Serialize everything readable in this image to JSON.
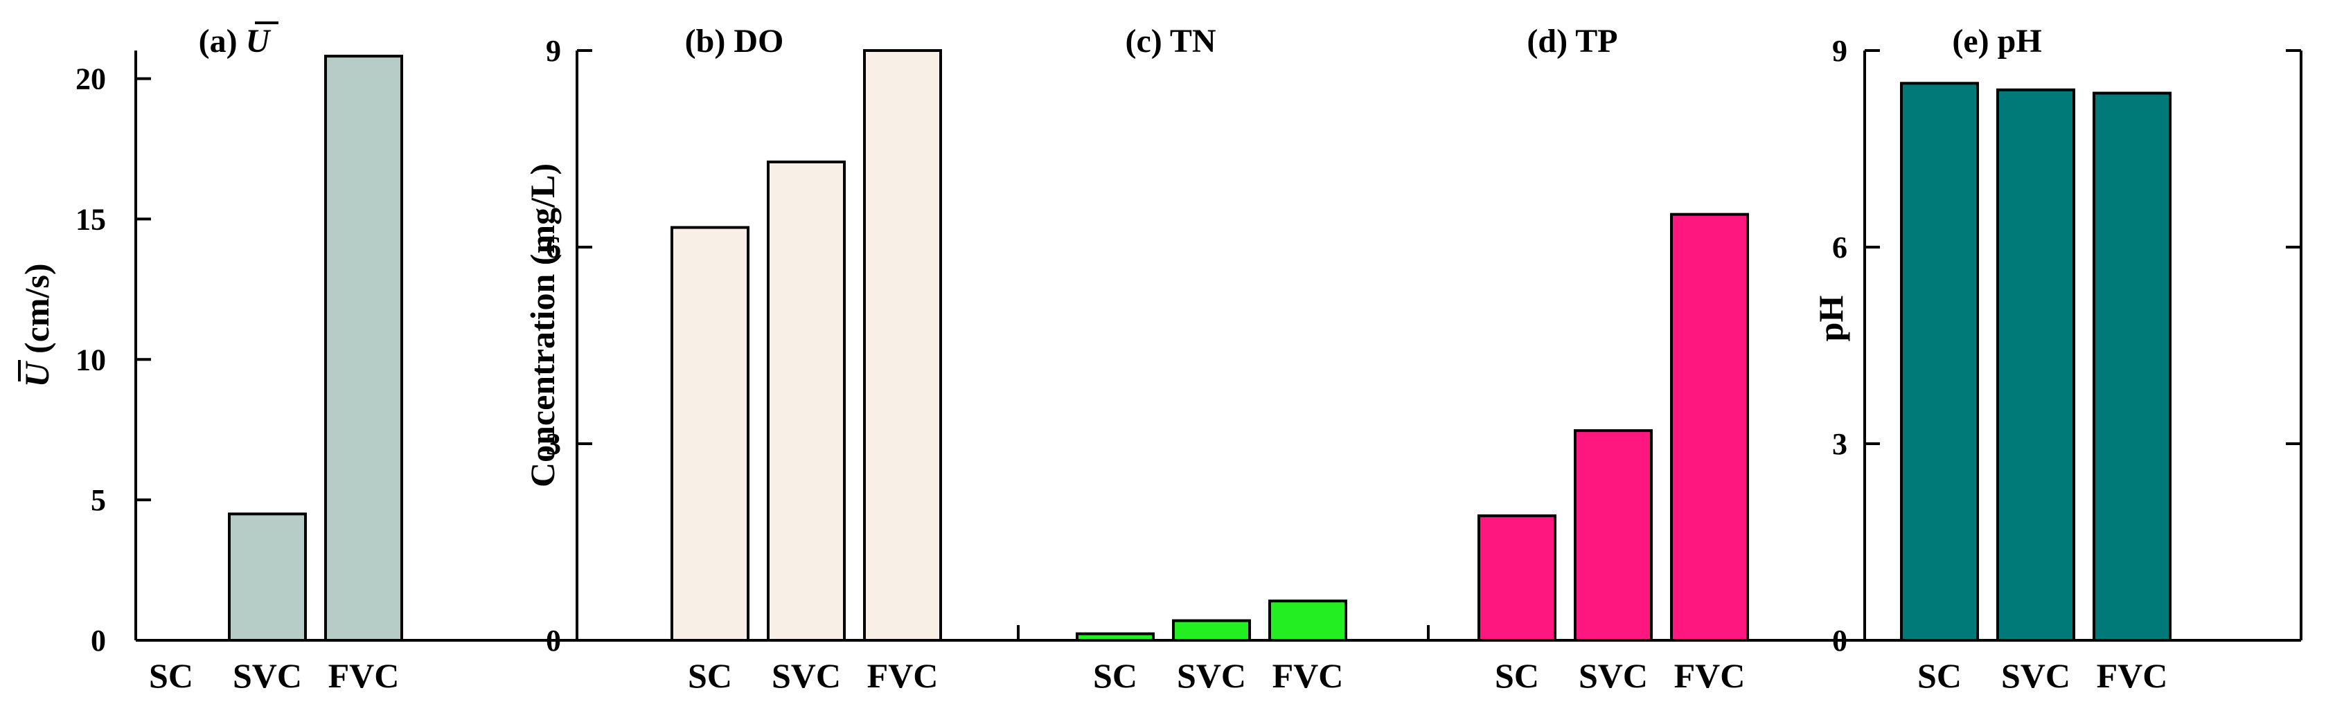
{
  "chart_data": [
    {
      "type": "bar",
      "title": "(a) Ū",
      "title_plain": "(a) ",
      "title_symbol": "U",
      "categories": [
        "SC",
        "SVC",
        "FVC"
      ],
      "values": [
        0,
        4.5,
        20.8
      ],
      "ylabel_symbol": "U",
      "ylabel_unit": " (cm/s)",
      "ylim": [
        0,
        21
      ],
      "yticks": [
        0,
        5,
        10,
        15,
        20
      ],
      "color": "#b5cdc6",
      "grid": false
    },
    {
      "type": "bar",
      "title": "(b) DO",
      "categories": [
        "SC",
        "SVC",
        "FVC"
      ],
      "values": [
        6.3,
        7.3,
        9.0
      ],
      "ylabel": "Concentration (mg/L)",
      "ylim": [
        0,
        9
      ],
      "yticks": [
        0,
        3,
        6,
        9
      ],
      "color": "#f8efe6",
      "grid": false
    },
    {
      "type": "bar",
      "title": "(c) TN",
      "categories": [
        "SC",
        "SVC",
        "FVC"
      ],
      "values": [
        0.1,
        0.3,
        0.6
      ],
      "ylim": [
        0,
        9
      ],
      "color": "#22ee22",
      "grid": false
    },
    {
      "type": "bar",
      "title": "(d) TP",
      "categories": [
        "SC",
        "SVC",
        "FVC"
      ],
      "values": [
        1.9,
        3.2,
        6.5
      ],
      "ylim": [
        0,
        9
      ],
      "color": "#ff1780",
      "grid": false
    },
    {
      "type": "bar",
      "title": "(e) pH",
      "categories": [
        "SC",
        "SVC",
        "FVC"
      ],
      "values": [
        8.5,
        8.4,
        8.35
      ],
      "ylabel": "pH",
      "ylim": [
        0,
        9
      ],
      "yticks": [
        0,
        3,
        6,
        9
      ],
      "color": "#007a78",
      "grid": false
    }
  ]
}
